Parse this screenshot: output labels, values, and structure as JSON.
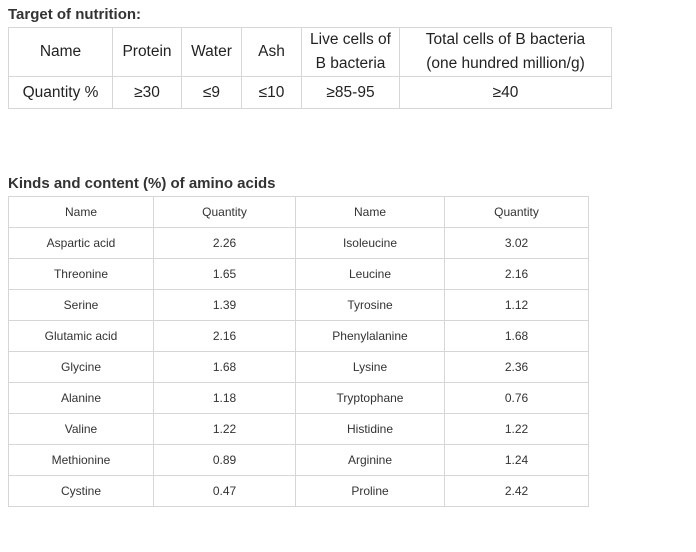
{
  "nutrition": {
    "title": "Target of nutrition:",
    "headers": [
      "Name",
      "Protein",
      "Water",
      "Ash",
      "Live cells of B bacteria",
      "Total cells of B bacteria (one hundred million/g)"
    ],
    "header_lines": {
      "live": [
        "Live cells of",
        "B bacteria"
      ],
      "total": [
        "Total cells of B bacteria",
        "(one hundred million/g)"
      ]
    },
    "row": [
      "Quantity %",
      "≥30",
      "≤9",
      "≤10",
      "≥85-95",
      "≥40"
    ]
  },
  "amino": {
    "title": "Kinds and content (%) of amino acids",
    "headers": [
      "Name",
      "Quantity",
      "Name",
      "Quantity"
    ],
    "rows": [
      [
        "Aspartic acid",
        "2.26",
        "Isoleucine",
        "3.02"
      ],
      [
        "Threonine",
        "1.65",
        "Leucine",
        "2.16"
      ],
      [
        "Serine",
        "1.39",
        "Tyrosine",
        "1.12"
      ],
      [
        "Glutamic acid",
        "2.16",
        "Phenylalanine",
        "1.68"
      ],
      [
        "Glycine",
        "1.68",
        "Lysine",
        "2.36"
      ],
      [
        "Alanine",
        "1.18",
        "Tryptophane",
        "0.76"
      ],
      [
        "Valine",
        "1.22",
        "Histidine",
        "1.22"
      ],
      [
        "Methionine",
        "0.89",
        "Arginine",
        "1.24"
      ],
      [
        "Cystine",
        "0.47",
        "Proline",
        "2.42"
      ]
    ]
  }
}
